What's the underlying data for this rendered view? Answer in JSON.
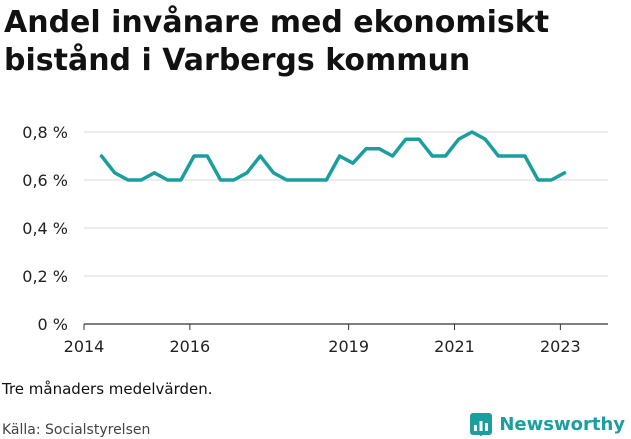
{
  "title": "Andel invånare med ekonomiskt bistånd i Varbergs kommun",
  "note": "Tre månaders medelvärden.",
  "source": "Källa: Socialstyrelsen",
  "brand": {
    "name": "Newsworthy",
    "icon": "bar-chart-logo-icon",
    "color": "#1a9e9e"
  },
  "chart_data": {
    "type": "line",
    "title": "Andel invånare med ekonomiskt bistånd i Varbergs kommun",
    "xlabel": "",
    "ylabel": "",
    "xlim": [
      2014.0,
      2023.9
    ],
    "ylim": [
      0,
      0.8
    ],
    "x_ticks": [
      {
        "value": 2014,
        "label": "2014"
      },
      {
        "value": 2016,
        "label": "2016"
      },
      {
        "value": 2019,
        "label": "2019"
      },
      {
        "value": 2021,
        "label": "2021"
      },
      {
        "value": 2023,
        "label": "2023"
      }
    ],
    "y_ticks": [
      {
        "value": 0,
        "label": "0 %"
      },
      {
        "value": 0.2,
        "label": "0,2 %"
      },
      {
        "value": 0.4,
        "label": "0,4 %"
      },
      {
        "value": 0.6,
        "label": "0,6 %"
      },
      {
        "value": 0.8,
        "label": "0,8 %"
      }
    ],
    "grid": true,
    "legend": "none",
    "color": "#1a9e9e",
    "series": [
      {
        "x": [
          2014.33,
          2014.58,
          2014.83,
          2015.08,
          2015.33,
          2015.58,
          2015.83,
          2016.08,
          2016.33,
          2016.58,
          2016.83,
          2017.08,
          2017.33,
          2017.58,
          2017.83,
          2018.08,
          2018.33,
          2018.58,
          2018.83,
          2019.08,
          2019.33,
          2019.58,
          2019.83,
          2020.08,
          2020.33,
          2020.58,
          2020.83,
          2021.08,
          2021.33,
          2021.58,
          2021.83,
          2022.08,
          2022.33,
          2022.58,
          2022.83,
          2023.08
        ],
        "values": [
          0.7,
          0.63,
          0.6,
          0.6,
          0.63,
          0.6,
          0.6,
          0.7,
          0.7,
          0.6,
          0.6,
          0.63,
          0.7,
          0.63,
          0.6,
          0.6,
          0.6,
          0.6,
          0.7,
          0.67,
          0.73,
          0.73,
          0.7,
          0.77,
          0.77,
          0.7,
          0.7,
          0.77,
          0.8,
          0.77,
          0.7,
          0.7,
          0.7,
          0.6,
          0.6,
          0.63
        ]
      }
    ]
  }
}
